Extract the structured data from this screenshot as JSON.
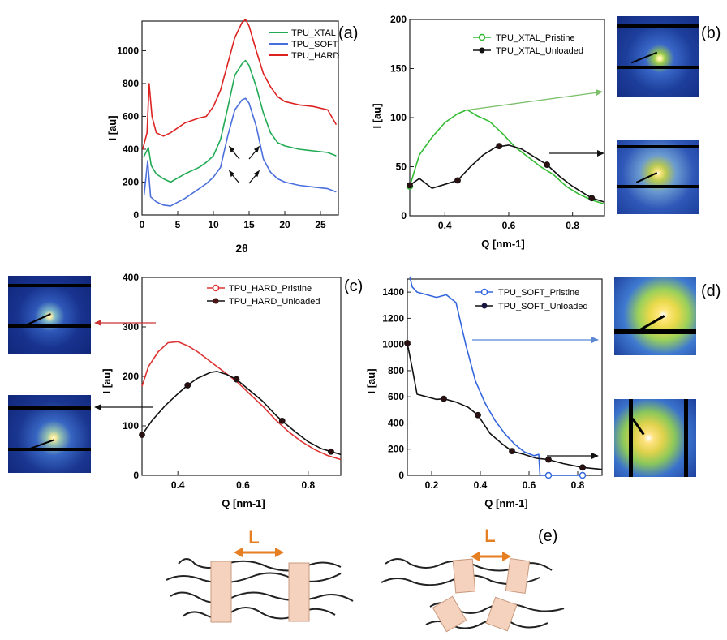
{
  "panels": [
    {
      "id": "a",
      "panel_label": "(a)",
      "colors": {
        "TPU_XTAL": "#22aa55",
        "TPU_SOFT": "#4a6fdc",
        "TPU_HARD": "#dd2222"
      }
    },
    {
      "id": "b",
      "panel_label": "(b)",
      "colors": {
        "pristine": "#33bb33",
        "unloaded": "#111111"
      }
    },
    {
      "id": "c",
      "panel_label": "(c)",
      "colors": {
        "pristine": "#dd3333",
        "unloaded": "#111111"
      }
    },
    {
      "id": "d",
      "panel_label": "(d)",
      "colors": {
        "pristine": "#3366dd",
        "unloaded": "#111111"
      }
    }
  ],
  "chart_data": [
    {
      "panel": "a",
      "type": "line",
      "xlabel": "2θ",
      "ylabel": "I [au]",
      "xlim": [
        0,
        27.5
      ],
      "ylim": [
        0,
        1180
      ],
      "xticks": [
        0,
        5,
        10,
        15,
        20,
        25
      ],
      "yticks": [
        0,
        200,
        400,
        600,
        800,
        1000
      ],
      "legend_position": "top-right",
      "series": [
        {
          "name": "TPU_XTAL",
          "color": "#22aa55",
          "x": [
            0.2,
            0.9,
            1.3,
            2,
            3,
            4,
            6,
            8,
            9,
            10,
            11,
            12,
            13,
            14,
            14.5,
            15,
            16,
            17,
            18,
            19,
            20,
            22,
            24,
            26,
            27.2
          ],
          "y": [
            350,
            410,
            300,
            250,
            220,
            200,
            250,
            290,
            320,
            360,
            460,
            650,
            850,
            920,
            940,
            910,
            780,
            620,
            500,
            440,
            420,
            400,
            390,
            380,
            360
          ]
        },
        {
          "name": "TPU_SOFT",
          "color": "#4a6fdc",
          "x": [
            0.3,
            0.8,
            1.2,
            2,
            3,
            4,
            6,
            8,
            9,
            10,
            11,
            12,
            13,
            14,
            14.5,
            15,
            16,
            17,
            18,
            19,
            20,
            22,
            24,
            26,
            27.2
          ],
          "y": [
            120,
            330,
            110,
            80,
            60,
            55,
            100,
            160,
            190,
            230,
            290,
            480,
            640,
            700,
            710,
            680,
            540,
            340,
            260,
            220,
            200,
            180,
            170,
            160,
            140
          ]
        },
        {
          "name": "TPU_HARD",
          "color": "#dd2222",
          "x": [
            0.1,
            0.7,
            1.0,
            1.4,
            2,
            3,
            4,
            6,
            8,
            9,
            10,
            11,
            12,
            13,
            14,
            14.5,
            15,
            16,
            17,
            18,
            19,
            20,
            22,
            24,
            26,
            27.2
          ],
          "y": [
            400,
            500,
            800,
            600,
            500,
            480,
            500,
            560,
            590,
            600,
            660,
            760,
            920,
            1080,
            1170,
            1190,
            1150,
            1000,
            860,
            780,
            720,
            690,
            670,
            660,
            640,
            550
          ]
        }
      ]
    },
    {
      "panel": "b",
      "type": "line",
      "xlabel": "Q [nm-1]",
      "ylabel": "I [au]",
      "xlim": [
        0.29,
        0.9
      ],
      "ylim": [
        0,
        200
      ],
      "xticks": [
        0.4,
        0.6,
        0.8
      ],
      "yticks": [
        0,
        50,
        100,
        150,
        200
      ],
      "legend_position": "top-right",
      "series": [
        {
          "name": "TPU_XTAL_Pristine",
          "color": "#33bb33",
          "x": [
            0.29,
            0.32,
            0.36,
            0.4,
            0.44,
            0.47,
            0.5,
            0.54,
            0.58,
            0.62,
            0.66,
            0.7,
            0.74,
            0.78,
            0.82,
            0.86,
            0.9
          ],
          "y": [
            30,
            62,
            80,
            95,
            104,
            108,
            102,
            96,
            84,
            70,
            60,
            50,
            42,
            30,
            22,
            16,
            12
          ],
          "markers_x": [
            0.29
          ],
          "markers_y": [
            30
          ]
        },
        {
          "name": "TPU_XTAL_Unloaded",
          "color": "#111111",
          "x": [
            0.29,
            0.32,
            0.36,
            0.4,
            0.44,
            0.48,
            0.52,
            0.56,
            0.6,
            0.64,
            0.68,
            0.72,
            0.76,
            0.8,
            0.84,
            0.86,
            0.9
          ],
          "y": [
            31,
            38,
            28,
            32,
            36,
            50,
            62,
            70,
            72,
            68,
            60,
            52,
            40,
            30,
            22,
            18,
            14
          ],
          "markers_x": [
            0.29,
            0.44,
            0.57,
            0.72,
            0.86
          ],
          "markers_y": [
            31,
            36,
            71,
            52,
            18
          ]
        }
      ]
    },
    {
      "panel": "c",
      "type": "line",
      "xlabel": "Q [nm-1]",
      "ylabel": "I [au]",
      "xlim": [
        0.29,
        0.9
      ],
      "ylim": [
        0,
        400
      ],
      "xticks": [
        0.4,
        0.6,
        0.8
      ],
      "yticks": [
        0,
        100,
        200,
        300,
        400
      ],
      "legend_position": "top-right",
      "series": [
        {
          "name": "TPU_HARD_Pristine",
          "color": "#dd3333",
          "x": [
            0.29,
            0.31,
            0.34,
            0.37,
            0.4,
            0.43,
            0.46,
            0.5,
            0.54,
            0.58,
            0.62,
            0.66,
            0.7,
            0.74,
            0.78,
            0.82,
            0.86,
            0.9
          ],
          "y": [
            180,
            220,
            250,
            268,
            270,
            262,
            250,
            230,
            210,
            190,
            165,
            140,
            112,
            88,
            68,
            52,
            40,
            32
          ],
          "markers_x": [],
          "markers_y": []
        },
        {
          "name": "TPU_HARD_Unloaded",
          "color": "#111111",
          "x": [
            0.29,
            0.32,
            0.36,
            0.4,
            0.43,
            0.46,
            0.5,
            0.52,
            0.55,
            0.58,
            0.62,
            0.66,
            0.7,
            0.72,
            0.76,
            0.8,
            0.84,
            0.87,
            0.9
          ],
          "y": [
            82,
            110,
            140,
            165,
            182,
            196,
            208,
            210,
            204,
            194,
            172,
            150,
            122,
            110,
            88,
            68,
            54,
            48,
            42
          ],
          "markers_x": [
            0.29,
            0.43,
            0.58,
            0.72,
            0.87
          ],
          "markers_y": [
            82,
            182,
            194,
            110,
            48
          ]
        }
      ]
    },
    {
      "panel": "d",
      "type": "line",
      "xlabel": "Q [nm-1]",
      "ylabel": "I [au]",
      "xlim": [
        0.1,
        0.9
      ],
      "ylim": [
        0,
        1500
      ],
      "xticks": [
        0.2,
        0.4,
        0.6,
        0.8
      ],
      "yticks": [
        0,
        200,
        400,
        600,
        800,
        1000,
        1200,
        1400
      ],
      "legend_position": "top-right",
      "series": [
        {
          "name": "TPU_SOFT_Pristine",
          "color": "#3366dd",
          "x": [
            0.11,
            0.12,
            0.14,
            0.18,
            0.22,
            0.26,
            0.3,
            0.34,
            0.38,
            0.42,
            0.46,
            0.5,
            0.54,
            0.58,
            0.62,
            0.64,
            0.645,
            0.7,
            0.8,
            0.82
          ],
          "y": [
            1520,
            1440,
            1400,
            1380,
            1360,
            1380,
            1320,
            1000,
            720,
            550,
            420,
            320,
            240,
            180,
            150,
            160,
            0,
            0,
            0,
            0
          ],
          "markers_x": [
            0.68,
            0.82
          ],
          "markers_y": [
            0,
            0
          ]
        },
        {
          "name": "TPU_SOFT_Unloaded",
          "color": "#111111",
          "x": [
            0.1,
            0.12,
            0.14,
            0.18,
            0.22,
            0.25,
            0.3,
            0.35,
            0.39,
            0.44,
            0.49,
            0.53,
            0.58,
            0.63,
            0.68,
            0.74,
            0.82,
            0.9
          ],
          "y": [
            1010,
            820,
            620,
            600,
            580,
            585,
            560,
            520,
            460,
            320,
            240,
            185,
            160,
            130,
            120,
            90,
            60,
            45
          ],
          "markers_x": [
            0.1,
            0.25,
            0.39,
            0.53,
            0.68,
            0.82
          ],
          "markers_y": [
            1010,
            585,
            460,
            185,
            120,
            60
          ]
        }
      ]
    }
  ],
  "schematic": {
    "panel_label": "(e)",
    "spacing_label": "L",
    "accent_color": "#e67e22",
    "block_color": "#f5d2bd"
  }
}
